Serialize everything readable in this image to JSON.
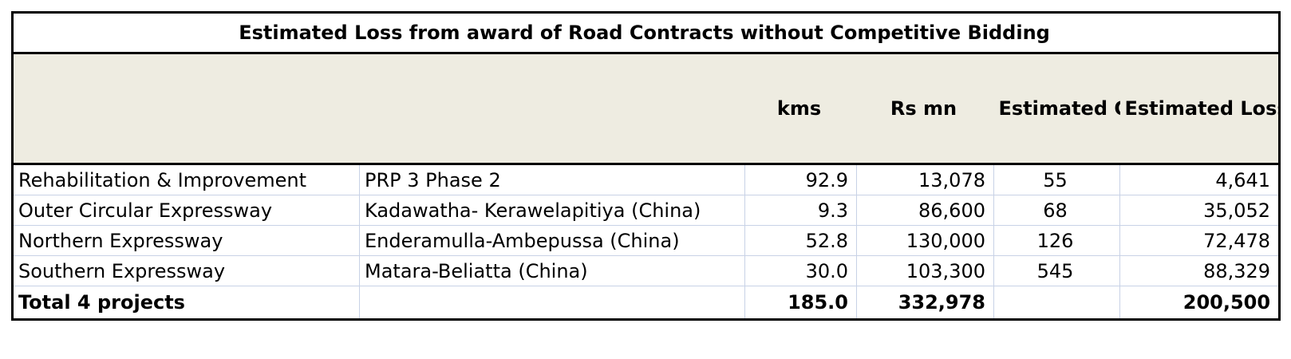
{
  "table": {
    "title": "Estimated Loss from award of Road Contracts without Competitive Bidding",
    "headers": {
      "kms": "kms",
      "rs_mn": "Rs mn",
      "overpricing": "Estimated Over pricing %",
      "loss": "Estimated Loss Rs bn"
    },
    "rows": [
      {
        "category": "Rehabilitation & Improvement",
        "project": "PRP 3 Phase 2",
        "kms": "92.9",
        "rs_mn": "13,078",
        "overpricing": "55",
        "loss": "4,641"
      },
      {
        "category": "Outer Circular Expressway",
        "project": "Kadawatha- Kerawelapitiya (China)",
        "kms": "9.3",
        "rs_mn": "86,600",
        "overpricing": "68",
        "loss": "35,052"
      },
      {
        "category": "Northern Expressway",
        "project": "Enderamulla-Ambepussa (China)",
        "kms": "52.8",
        "rs_mn": "130,000",
        "overpricing": "126",
        "loss": "72,478"
      },
      {
        "category": "Southern Expressway",
        "project": "Matara-Beliatta (China)",
        "kms": "30.0",
        "rs_mn": "103,300",
        "overpricing": "545",
        "loss": "88,329"
      }
    ],
    "total": {
      "label": "Total 4  projects",
      "kms": "185.0",
      "rs_mn": "332,978",
      "overpricing": "",
      "loss": "200,500"
    }
  }
}
